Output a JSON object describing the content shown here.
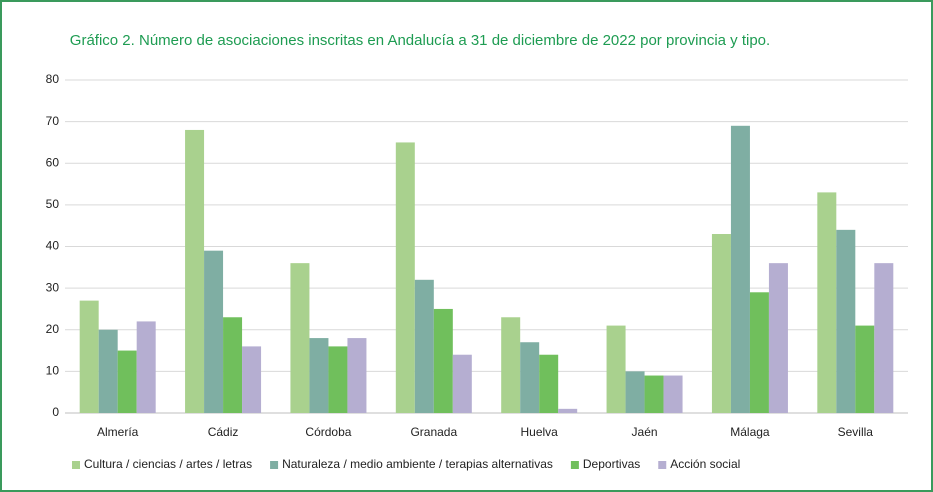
{
  "chart_data": {
    "type": "bar",
    "title": "Gráfico 2. Número de asociaciones inscritas en Andalucía a 31 de diciembre de 2022 por provincia y tipo.",
    "categories": [
      "Almería",
      "Cádiz",
      "Córdoba",
      "Granada",
      "Huelva",
      "Jaén",
      "Málaga",
      "Sevilla"
    ],
    "series": [
      {
        "name": "Cultura / ciencias / artes / letras",
        "color": "#a9d18e",
        "values": [
          27,
          68,
          36,
          65,
          23,
          21,
          43,
          53
        ]
      },
      {
        "name": "Naturaleza / medio ambiente / terapias alternativas",
        "color": "#7faea3",
        "values": [
          20,
          39,
          18,
          32,
          17,
          10,
          69,
          44
        ]
      },
      {
        "name": "Deportivas",
        "color": "#70bf5c",
        "values": [
          15,
          23,
          16,
          25,
          14,
          9,
          29,
          21
        ]
      },
      {
        "name": "Acción social",
        "color": "#b5aed1",
        "values": [
          22,
          16,
          18,
          14,
          1,
          9,
          36,
          36
        ]
      }
    ],
    "ylim": [
      0,
      80
    ],
    "yticks": [
      0,
      10,
      20,
      30,
      40,
      50,
      60,
      70,
      80
    ],
    "grid": true,
    "legend": "bottom"
  }
}
